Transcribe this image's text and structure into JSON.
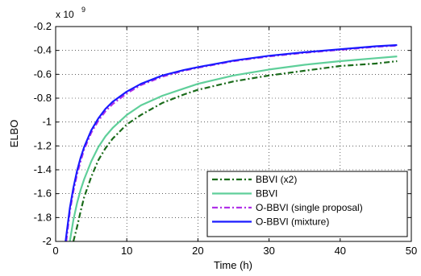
{
  "chart_data": {
    "type": "line",
    "xlabel": "Time (h)",
    "ylabel": "ELBO",
    "y_scale_note": {
      "base": "x 10",
      "exponent": "9"
    },
    "xlim": [
      0,
      50
    ],
    "ylim": [
      -2.0,
      -0.2
    ],
    "xticks": [
      0,
      10,
      20,
      30,
      40,
      50
    ],
    "xtick_labels": [
      "0",
      "10",
      "20",
      "30",
      "40",
      "50"
    ],
    "yticks": [
      -2.0,
      -1.8,
      -1.6,
      -1.4,
      -1.2,
      -1.0,
      -0.8,
      -0.6,
      -0.4,
      -0.2
    ],
    "ytick_labels": [
      "-2",
      "-1.8",
      "-1.6",
      "-1.4",
      "-1.2",
      "-1",
      "-0.8",
      "-0.6",
      "-0.4",
      "-0.2"
    ],
    "grid": true,
    "legend_position": "bottom-right",
    "series": [
      {
        "name": "BBVI (x2)",
        "color": "#1a6b1a",
        "style": "dashdot",
        "x": [
          2.5,
          3,
          3.5,
          4,
          5,
          6,
          7,
          8,
          10,
          12,
          15,
          18,
          20,
          25,
          30,
          35,
          40,
          45,
          48
        ],
        "y": [
          -2.0,
          -1.88,
          -1.75,
          -1.63,
          -1.46,
          -1.32,
          -1.22,
          -1.14,
          -1.02,
          -0.94,
          -0.84,
          -0.77,
          -0.73,
          -0.66,
          -0.61,
          -0.57,
          -0.53,
          -0.51,
          -0.49
        ]
      },
      {
        "name": "BBVI",
        "color": "#5fcf9a",
        "style": "solid",
        "x": [
          2.0,
          2.5,
          3,
          3.5,
          4,
          5,
          6,
          7,
          8,
          10,
          12,
          15,
          18,
          20,
          25,
          30,
          35,
          40,
          45,
          48
        ],
        "y": [
          -2.0,
          -1.82,
          -1.68,
          -1.57,
          -1.48,
          -1.33,
          -1.21,
          -1.12,
          -1.05,
          -0.94,
          -0.86,
          -0.78,
          -0.72,
          -0.68,
          -0.61,
          -0.56,
          -0.52,
          -0.49,
          -0.465,
          -0.45
        ]
      },
      {
        "name": "O-BBVI (single proposal)",
        "color": "#b030e8",
        "style": "dashdot",
        "x": [
          1.5,
          2,
          2.5,
          3,
          3.5,
          4,
          5,
          6,
          7,
          8,
          10,
          12,
          15,
          18,
          20,
          25,
          30,
          35,
          40,
          45,
          48
        ],
        "y": [
          -2.0,
          -1.75,
          -1.58,
          -1.44,
          -1.33,
          -1.23,
          -1.09,
          -0.99,
          -0.91,
          -0.85,
          -0.76,
          -0.69,
          -0.62,
          -0.57,
          -0.545,
          -0.49,
          -0.45,
          -0.42,
          -0.395,
          -0.37,
          -0.36
        ]
      },
      {
        "name": "O-BBVI (mixture)",
        "color": "#1a1aff",
        "style": "solid",
        "x": [
          1.4,
          2,
          2.5,
          3,
          3.5,
          4,
          5,
          6,
          7,
          8,
          10,
          12,
          15,
          18,
          20,
          25,
          30,
          35,
          40,
          45,
          48
        ],
        "y": [
          -2.0,
          -1.72,
          -1.55,
          -1.41,
          -1.3,
          -1.21,
          -1.07,
          -0.97,
          -0.89,
          -0.83,
          -0.745,
          -0.68,
          -0.61,
          -0.565,
          -0.54,
          -0.485,
          -0.445,
          -0.415,
          -0.39,
          -0.365,
          -0.355
        ]
      }
    ]
  }
}
